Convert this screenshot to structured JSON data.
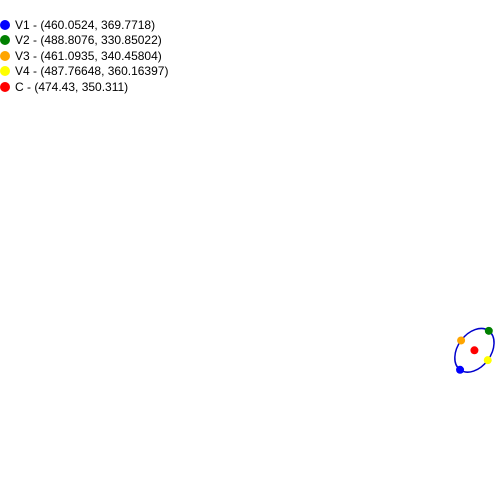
{
  "legend": [
    {
      "label": "V1 - (460.0524, 369.7718)",
      "color": "#0000ff",
      "icon": "blue-dot-icon"
    },
    {
      "label": "V2 - (488.8076, 330.85022)",
      "color": "#008000",
      "icon": "green-dot-icon"
    },
    {
      "label": "V3 - (461.0935, 340.45804)",
      "color": "#ffa500",
      "icon": "orange-dot-icon"
    },
    {
      "label": "V4 - (487.76648, 360.16397)",
      "color": "#ffff00",
      "icon": "yellow-dot-icon"
    },
    {
      "label": "C - (474.43, 350.311)",
      "color": "#ff0000",
      "icon": "red-dot-icon"
    }
  ],
  "ellipse": {
    "stroke_color": "#0000cc",
    "center": [
      474.43,
      350.311
    ],
    "vertices": [
      [
        460.0524,
        369.7718
      ],
      [
        488.8076,
        330.85022
      ]
    ],
    "covertices": [
      [
        461.0935,
        340.45804
      ],
      [
        487.76648,
        360.16397
      ]
    ]
  }
}
